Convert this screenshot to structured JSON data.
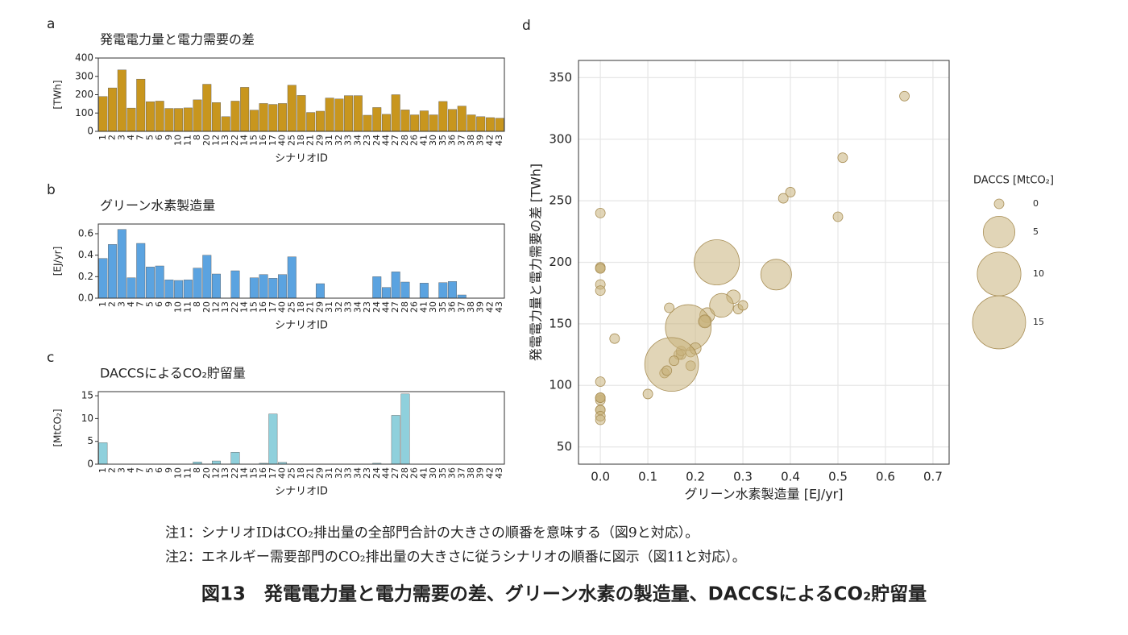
{
  "chart_data": [
    {
      "type": "bar",
      "panel": "a",
      "title": "発電電力量と電力需要の差",
      "ylabel": "[TWh]",
      "xlabel": "シナリオID",
      "color": "#c8961e",
      "categories": [
        "1",
        "2",
        "3",
        "4",
        "7",
        "5",
        "6",
        "9",
        "10",
        "11",
        "8",
        "20",
        "12",
        "13",
        "22",
        "14",
        "15",
        "16",
        "17",
        "40",
        "25",
        "18",
        "21",
        "29",
        "31",
        "32",
        "33",
        "34",
        "23",
        "24",
        "44",
        "27",
        "28",
        "26",
        "41",
        "30",
        "35",
        "36",
        "37",
        "38",
        "39",
        "42",
        "43"
      ],
      "values": [
        190,
        237,
        335,
        127,
        285,
        162,
        165,
        125,
        125,
        128,
        172,
        257,
        157,
        80,
        165,
        240,
        116,
        152,
        147,
        152,
        252,
        196,
        103,
        110,
        182,
        177,
        195,
        195,
        88,
        130,
        93,
        200,
        117,
        90,
        112,
        90,
        163,
        120,
        138,
        90,
        80,
        75,
        72
      ],
      "ylim": [
        0,
        400
      ],
      "yticks": [
        0,
        100,
        200,
        300,
        400
      ]
    },
    {
      "type": "bar",
      "panel": "b",
      "title": "グリーン水素製造量",
      "ylabel": "[EJ/yr]",
      "xlabel": "シナリオID",
      "color": "#5ba3e0",
      "categories": [
        "1",
        "2",
        "3",
        "4",
        "7",
        "5",
        "6",
        "9",
        "10",
        "11",
        "8",
        "20",
        "12",
        "13",
        "22",
        "14",
        "15",
        "16",
        "17",
        "40",
        "25",
        "18",
        "21",
        "29",
        "31",
        "32",
        "33",
        "34",
        "23",
        "24",
        "44",
        "27",
        "28",
        "26",
        "41",
        "30",
        "35",
        "36",
        "37",
        "38",
        "39",
        "42",
        "43"
      ],
      "values": [
        0.37,
        0.5,
        0.64,
        0.19,
        0.51,
        0.29,
        0.3,
        0.17,
        0.165,
        0.17,
        0.28,
        0.4,
        0.225,
        0,
        0.255,
        0,
        0.19,
        0.22,
        0.185,
        0.22,
        0.385,
        0,
        0,
        0.135,
        0,
        0,
        0,
        0,
        0,
        0.2,
        0.1,
        0.245,
        0.15,
        0,
        0.14,
        0,
        0.145,
        0.155,
        0.03,
        0,
        0,
        0,
        0
      ],
      "ylim": [
        0,
        0.69
      ],
      "yticks": [
        {
          "value": 0,
          "label": "0.0"
        },
        0.2,
        0.4,
        0.6
      ]
    },
    {
      "type": "bar",
      "panel": "c",
      "title": "DACCSによるCO₂貯留量",
      "ylabel": "[MtCO₂]",
      "xlabel": "シナリオID",
      "color": "#8fd0dc",
      "categories": [
        "1",
        "2",
        "3",
        "4",
        "7",
        "5",
        "6",
        "9",
        "10",
        "11",
        "8",
        "20",
        "12",
        "13",
        "22",
        "14",
        "15",
        "16",
        "17",
        "40",
        "25",
        "18",
        "21",
        "29",
        "31",
        "32",
        "33",
        "34",
        "23",
        "24",
        "44",
        "27",
        "28",
        "26",
        "41",
        "30",
        "35",
        "36",
        "37",
        "38",
        "39",
        "42",
        "43"
      ],
      "values": [
        4.7,
        0,
        0,
        0,
        0,
        0,
        0,
        0,
        0,
        0,
        0.5,
        0,
        0.7,
        0,
        2.6,
        0,
        0,
        0.2,
        11,
        0.4,
        0,
        0,
        0,
        0,
        0,
        0,
        0,
        0,
        0,
        0.2,
        0,
        10.7,
        15.4,
        0,
        0,
        0,
        0,
        0,
        0,
        0,
        0,
        0,
        0
      ],
      "ylim": [
        0,
        15.9
      ],
      "yticks": [
        0,
        5,
        10,
        15
      ]
    },
    {
      "type": "bubble",
      "panel": "d",
      "xlabel": "グリーン水素製造量 [EJ/yr]",
      "ylabel": "発電電力量と電力需要の差 [TWh]",
      "color": "#c9b27c",
      "x": [
        0.37,
        0.5,
        0.64,
        0.19,
        0.51,
        0.29,
        0.3,
        0.17,
        0.165,
        0.17,
        0.28,
        0.4,
        0.225,
        0,
        0.255,
        0,
        0.19,
        0.22,
        0.185,
        0.22,
        0.385,
        0,
        0,
        0.135,
        0,
        0,
        0,
        0,
        0,
        0.2,
        0.1,
        0.245,
        0.15,
        0,
        0.14,
        0,
        0.145,
        0.155,
        0.03,
        0,
        0,
        0,
        0
      ],
      "y": [
        190,
        237,
        335,
        127,
        285,
        162,
        165,
        125,
        125,
        128,
        172,
        257,
        157,
        80,
        165,
        240,
        116,
        152,
        147,
        152,
        252,
        196,
        103,
        110,
        182,
        177,
        195,
        195,
        88,
        130,
        93,
        200,
        117,
        90,
        112,
        90,
        163,
        120,
        138,
        90,
        80,
        75,
        72
      ],
      "sizes": [
        4.7,
        0,
        0,
        0,
        0,
        0,
        0,
        0,
        0,
        0,
        0.5,
        0,
        0.7,
        0,
        2.6,
        0,
        0,
        0.2,
        11,
        0.4,
        0,
        0,
        0,
        0,
        0,
        0,
        0,
        0,
        0,
        0.2,
        0,
        10.7,
        15.4,
        0,
        0,
        0,
        0,
        0,
        0,
        0,
        0,
        0,
        0
      ],
      "xlim": [
        -0.046,
        0.734
      ],
      "xticks": [
        {
          "value": 0,
          "label": "0.0"
        },
        0.1,
        0.2,
        0.3,
        0.4,
        0.5,
        0.6,
        0.7
      ],
      "ylim": [
        36,
        364
      ],
      "yticks": [
        50,
        100,
        150,
        200,
        250,
        300,
        350
      ],
      "grid": true,
      "size_legend_title": "DACCS [MtCO₂]",
      "size_legend": [
        0,
        5,
        10,
        15
      ]
    }
  ],
  "notes": [
    "注1：シナリオIDはCO₂排出量の全部門合計の大きさの順番を意味する（図9と対応）。",
    "注2：エネルギー需要部門のCO₂排出量の大きさに従うシナリオの順番に図示（図11と対応）。"
  ],
  "caption": "図13　発電電力量と電力需要の差、グリーン水素の製造量、DACCSによるCO₂貯留量"
}
